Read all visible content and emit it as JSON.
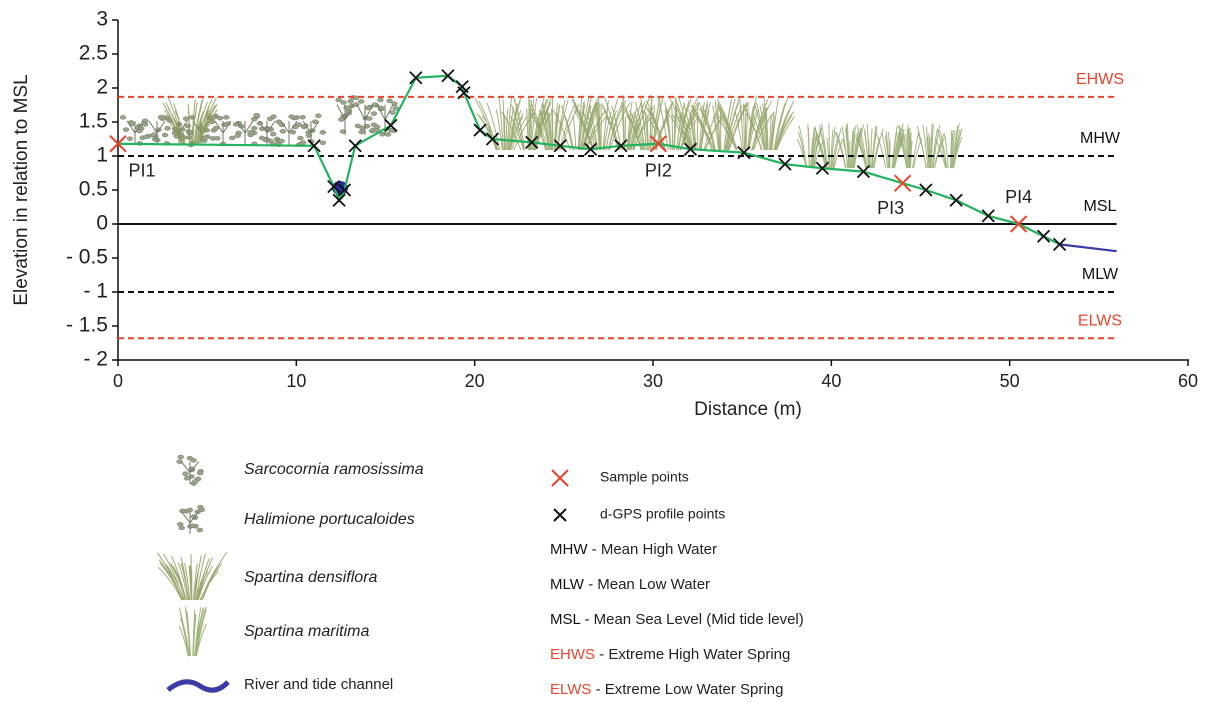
{
  "chart_data": {
    "type": "line",
    "x_label": "Distance (m)",
    "y_label": "Elevation in relation to MSL",
    "xlim": [
      0,
      60
    ],
    "xticks": [
      0,
      10,
      20,
      30,
      40,
      50,
      60
    ],
    "ylim": [
      -2,
      3
    ],
    "yticks": [
      3,
      2.5,
      2,
      1.5,
      1,
      0.5,
      0,
      {
        "value": -0.5,
        "label": "- 0.5"
      },
      {
        "value": -1,
        "label": "- 1"
      },
      {
        "value": -1.5,
        "label": "- 1.5"
      },
      {
        "value": -2,
        "label": "- 2"
      }
    ],
    "profile_line": {
      "color": "#22b35e",
      "x": [
        0,
        11,
        12.1,
        12.4,
        12.7,
        13.3,
        15.3,
        16.7,
        18.5,
        19.3,
        19.4,
        20.3,
        21,
        23.2,
        24.8,
        26.5,
        28.2,
        30.3,
        32.1,
        35.1,
        37.4,
        39.5,
        41.8,
        44,
        45.3,
        47,
        48.8,
        50.5,
        51.9,
        52.8
      ],
      "values": [
        1.18,
        1.15,
        0.55,
        0.35,
        0.5,
        1.15,
        1.45,
        2.15,
        2.18,
        2.02,
        1.93,
        1.38,
        1.25,
        1.2,
        1.15,
        1.1,
        1.15,
        1.18,
        1.1,
        1.05,
        0.88,
        0.82,
        0.77,
        0.6,
        0.5,
        0.35,
        0.12,
        0,
        -0.18,
        -0.3
      ]
    },
    "channel_line": {
      "name": "River and tide channel",
      "color": "#3b3ba6",
      "x": [
        52.8,
        56
      ],
      "values": [
        -0.3,
        -0.4
      ]
    },
    "series": [
      {
        "name": "Sample points",
        "color": "#e8452c",
        "x": [
          0,
          30.3,
          44,
          50.5
        ],
        "values": [
          1.18,
          1.18,
          0.6,
          0
        ],
        "labels": [
          "PI1",
          "PI2",
          "PI3",
          "PI4"
        ]
      },
      {
        "name": "d-GPS profile points",
        "color": "#111111",
        "x": [
          11,
          12.1,
          12.4,
          12.7,
          13.3,
          15.3,
          16.7,
          18.5,
          19.3,
          19.4,
          20.3,
          21,
          23.2,
          24.8,
          26.5,
          28.2,
          32.1,
          35.1,
          37.4,
          39.5,
          41.8,
          45.3,
          47,
          48.8,
          51.9,
          52.8
        ],
        "values": [
          1.15,
          0.55,
          0.35,
          0.5,
          1.15,
          1.45,
          2.15,
          2.18,
          2.02,
          1.93,
          1.38,
          1.25,
          1.2,
          1.15,
          1.1,
          1.15,
          1.1,
          1.05,
          0.88,
          0.82,
          0.77,
          0.5,
          0.35,
          0.12,
          -0.18,
          -0.3
        ]
      }
    ],
    "reference_extent": [
      0,
      56
    ],
    "reference_lines": [
      {
        "label": "MHW",
        "description": "- Mean High Water",
        "value": 1,
        "color": "#111111",
        "style": "dashed"
      },
      {
        "label": "MLW",
        "description": "- Mean Low Water",
        "value": -1,
        "color": "#111111",
        "style": "dashed"
      },
      {
        "label": "MSL",
        "description": "- Mean Sea Level (Mid tide level)",
        "value": 0,
        "color": "#111111",
        "style": "solid"
      },
      {
        "label": "EHWS",
        "description": "- Extreme High Water Spring",
        "value": 1.87,
        "color": "#e8452c",
        "style": "dashed"
      },
      {
        "label": "ELWS",
        "description": "- Extreme Low Water Spring",
        "value": -1.68,
        "color": "#e8452c",
        "style": "dashed"
      }
    ],
    "vegetation": [
      "Sarcocornia ramosissima",
      "Halimione portucaloides",
      "Spartina densiflora",
      "Spartina maritima"
    ]
  }
}
